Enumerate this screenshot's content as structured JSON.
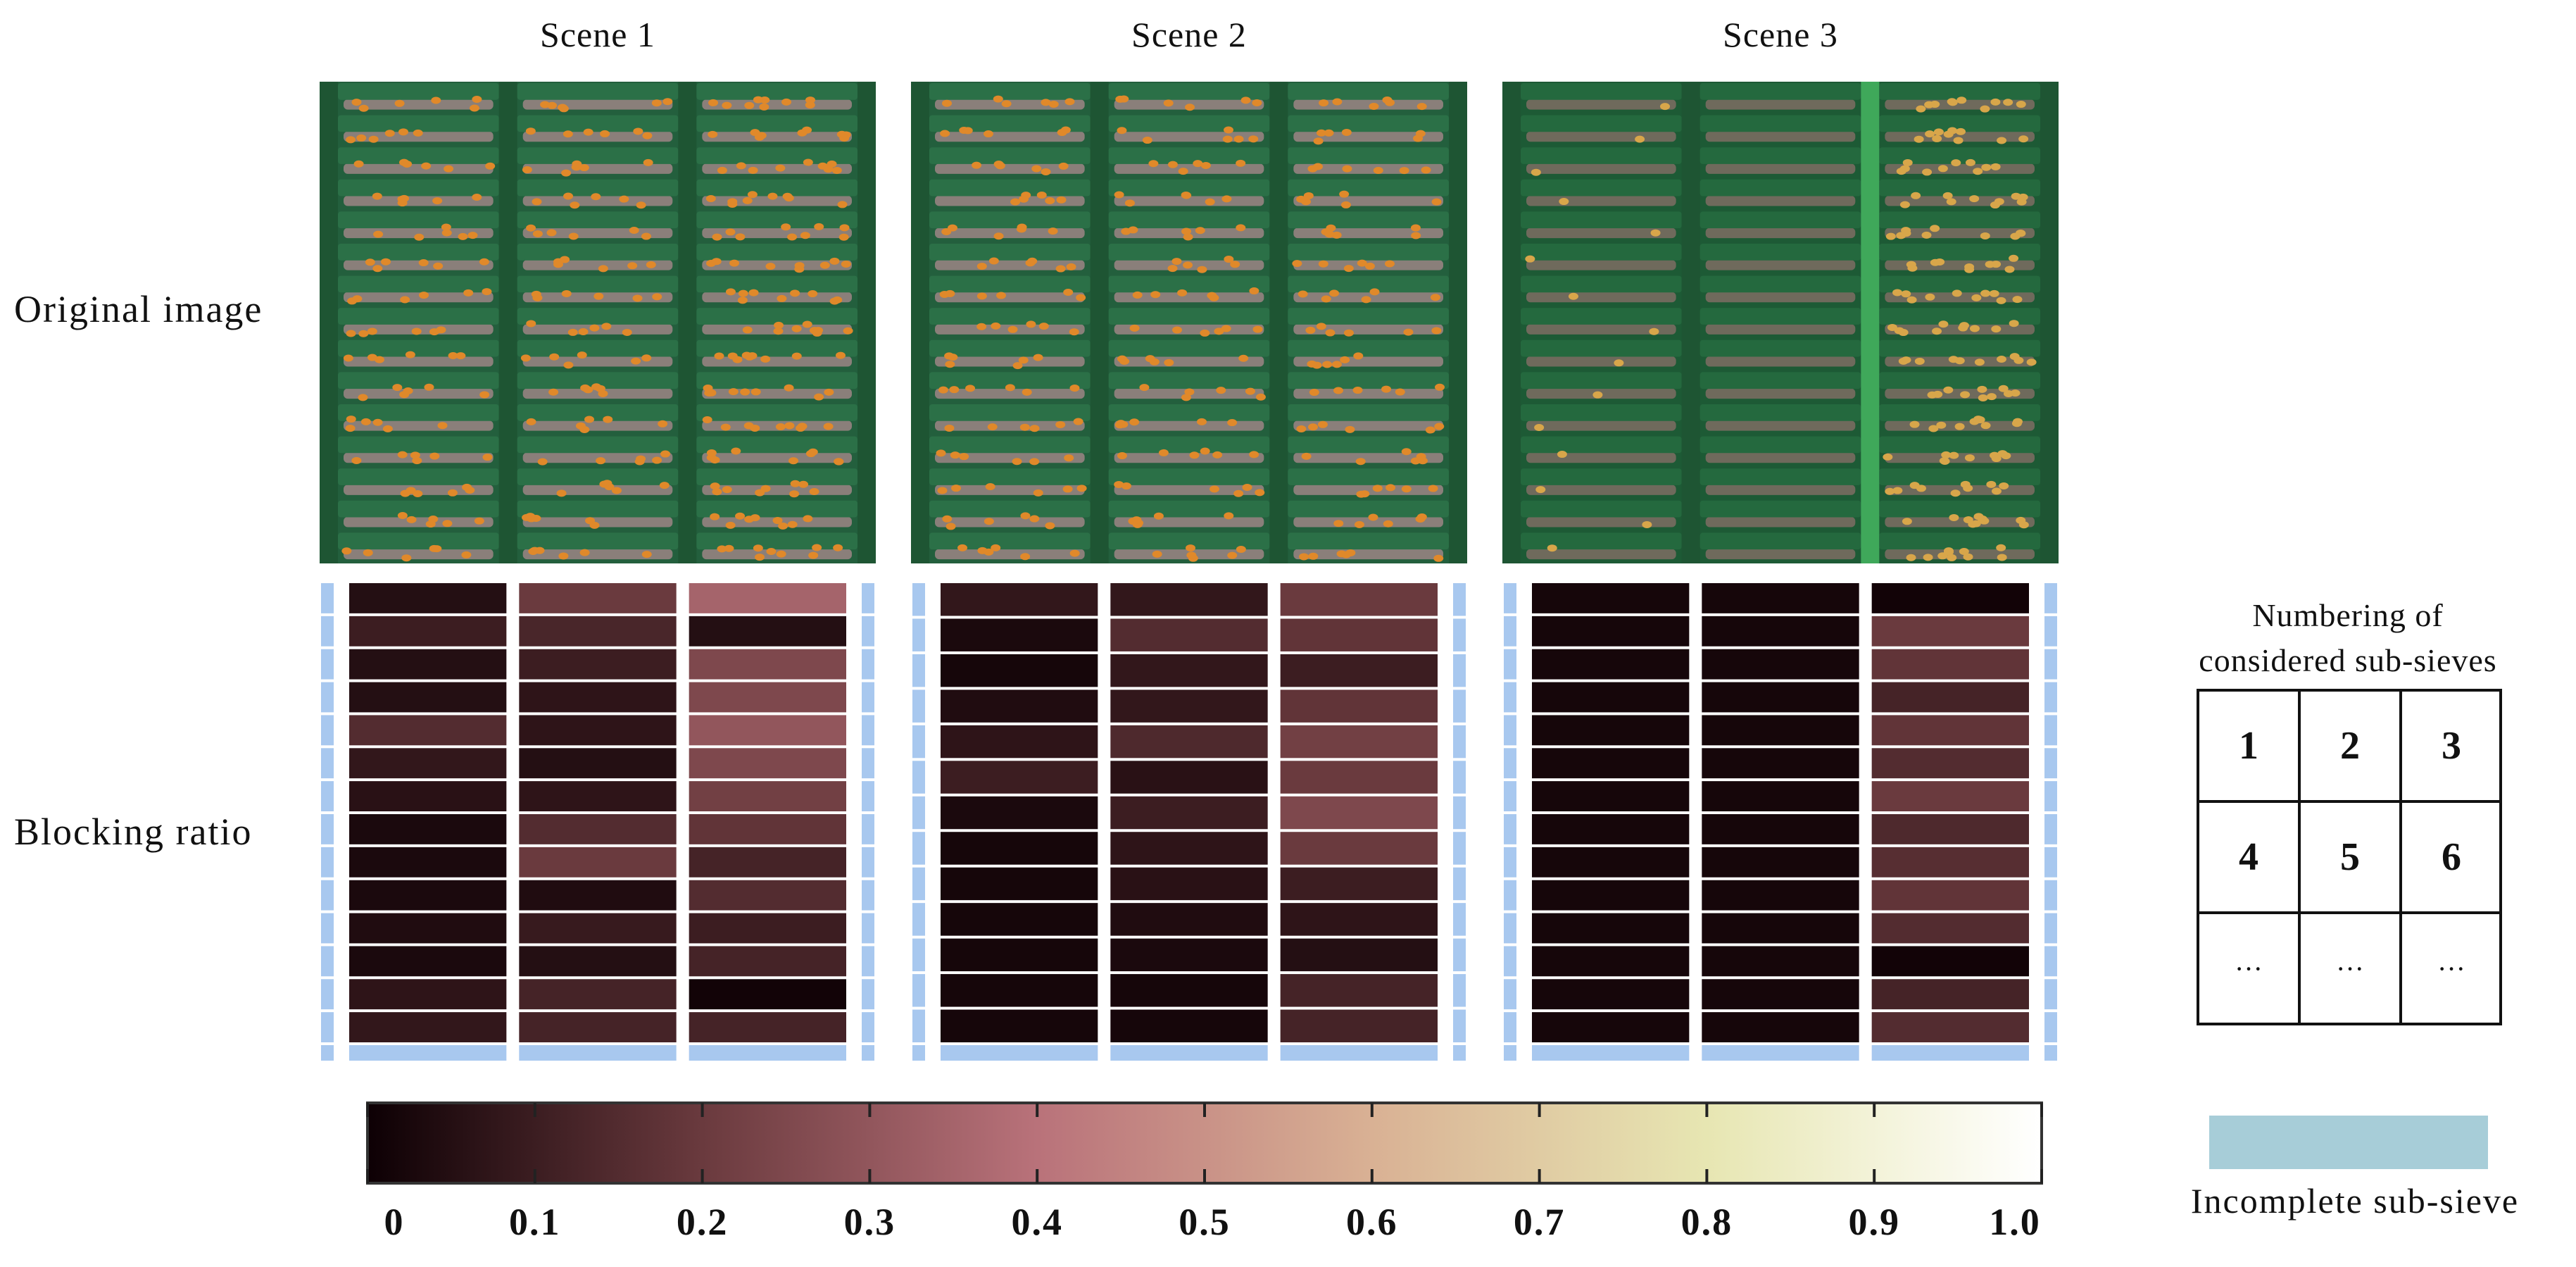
{
  "chart_data": {
    "type": "heatmap",
    "title": "",
    "row_labels": [
      "Original image",
      "Blocking ratio"
    ],
    "scenes": [
      {
        "name": "Scene 1",
        "columns": 3,
        "values": [
          [
            0.05,
            0.2,
            0.35
          ],
          [
            0.1,
            0.13,
            0.05
          ],
          [
            0.05,
            0.1,
            0.25
          ],
          [
            0.05,
            0.07,
            0.25
          ],
          [
            0.15,
            0.07,
            0.3
          ],
          [
            0.08,
            0.05,
            0.25
          ],
          [
            0.06,
            0.07,
            0.22
          ],
          [
            0.03,
            0.15,
            0.18
          ],
          [
            0.03,
            0.2,
            0.12
          ],
          [
            0.03,
            0.04,
            0.15
          ],
          [
            0.04,
            0.09,
            0.1
          ],
          [
            0.03,
            0.05,
            0.12
          ],
          [
            0.07,
            0.12,
            0.01
          ],
          [
            0.08,
            0.12,
            0.12
          ]
        ],
        "incomplete_last_row": true
      },
      {
        "name": "Scene 2",
        "columns": 3,
        "values": [
          [
            0.08,
            0.08,
            0.2
          ],
          [
            0.03,
            0.15,
            0.18
          ],
          [
            0.02,
            0.08,
            0.1
          ],
          [
            0.04,
            0.08,
            0.18
          ],
          [
            0.07,
            0.14,
            0.22
          ],
          [
            0.1,
            0.06,
            0.2
          ],
          [
            0.03,
            0.1,
            0.25
          ],
          [
            0.02,
            0.07,
            0.2
          ],
          [
            0.02,
            0.06,
            0.1
          ],
          [
            0.02,
            0.04,
            0.07
          ],
          [
            0.02,
            0.03,
            0.05
          ],
          [
            0.02,
            0.02,
            0.12
          ],
          [
            0.02,
            0.02,
            0.12
          ]
        ],
        "incomplete_last_row": true
      },
      {
        "name": "Scene 3",
        "columns": 3,
        "values": [
          [
            0.02,
            0.02,
            0.01
          ],
          [
            0.02,
            0.02,
            0.2
          ],
          [
            0.02,
            0.02,
            0.18
          ],
          [
            0.02,
            0.02,
            0.12
          ],
          [
            0.02,
            0.02,
            0.18
          ],
          [
            0.02,
            0.02,
            0.15
          ],
          [
            0.02,
            0.02,
            0.2
          ],
          [
            0.02,
            0.02,
            0.14
          ],
          [
            0.02,
            0.02,
            0.16
          ],
          [
            0.02,
            0.02,
            0.18
          ],
          [
            0.02,
            0.02,
            0.15
          ],
          [
            0.02,
            0.02,
            0.01
          ],
          [
            0.02,
            0.02,
            0.12
          ],
          [
            0.02,
            0.02,
            0.15
          ]
        ],
        "incomplete_last_row": true
      }
    ],
    "colorbar": {
      "min": 0,
      "max": 1.0,
      "ticks": [
        "0",
        "0.1",
        "0.2",
        "0.3",
        "0.4",
        "0.5",
        "0.6",
        "0.7",
        "0.8",
        "0.9",
        "1.0"
      ],
      "stops": [
        "#0d0004",
        "#6a3a3e",
        "#b9727a",
        "#d9b194",
        "#e7e6b2",
        "#ffffff"
      ]
    },
    "numbering": {
      "title_line1": "Numbering of",
      "title_line2": "considered sub-sieves",
      "cells": [
        "1",
        "2",
        "3",
        "4",
        "5",
        "6",
        "···",
        "···",
        "···"
      ]
    },
    "legend": {
      "label": "Incomplete sub-sieve",
      "color": "#a7cdd8"
    },
    "incomplete_color": "#a8c8ef"
  }
}
